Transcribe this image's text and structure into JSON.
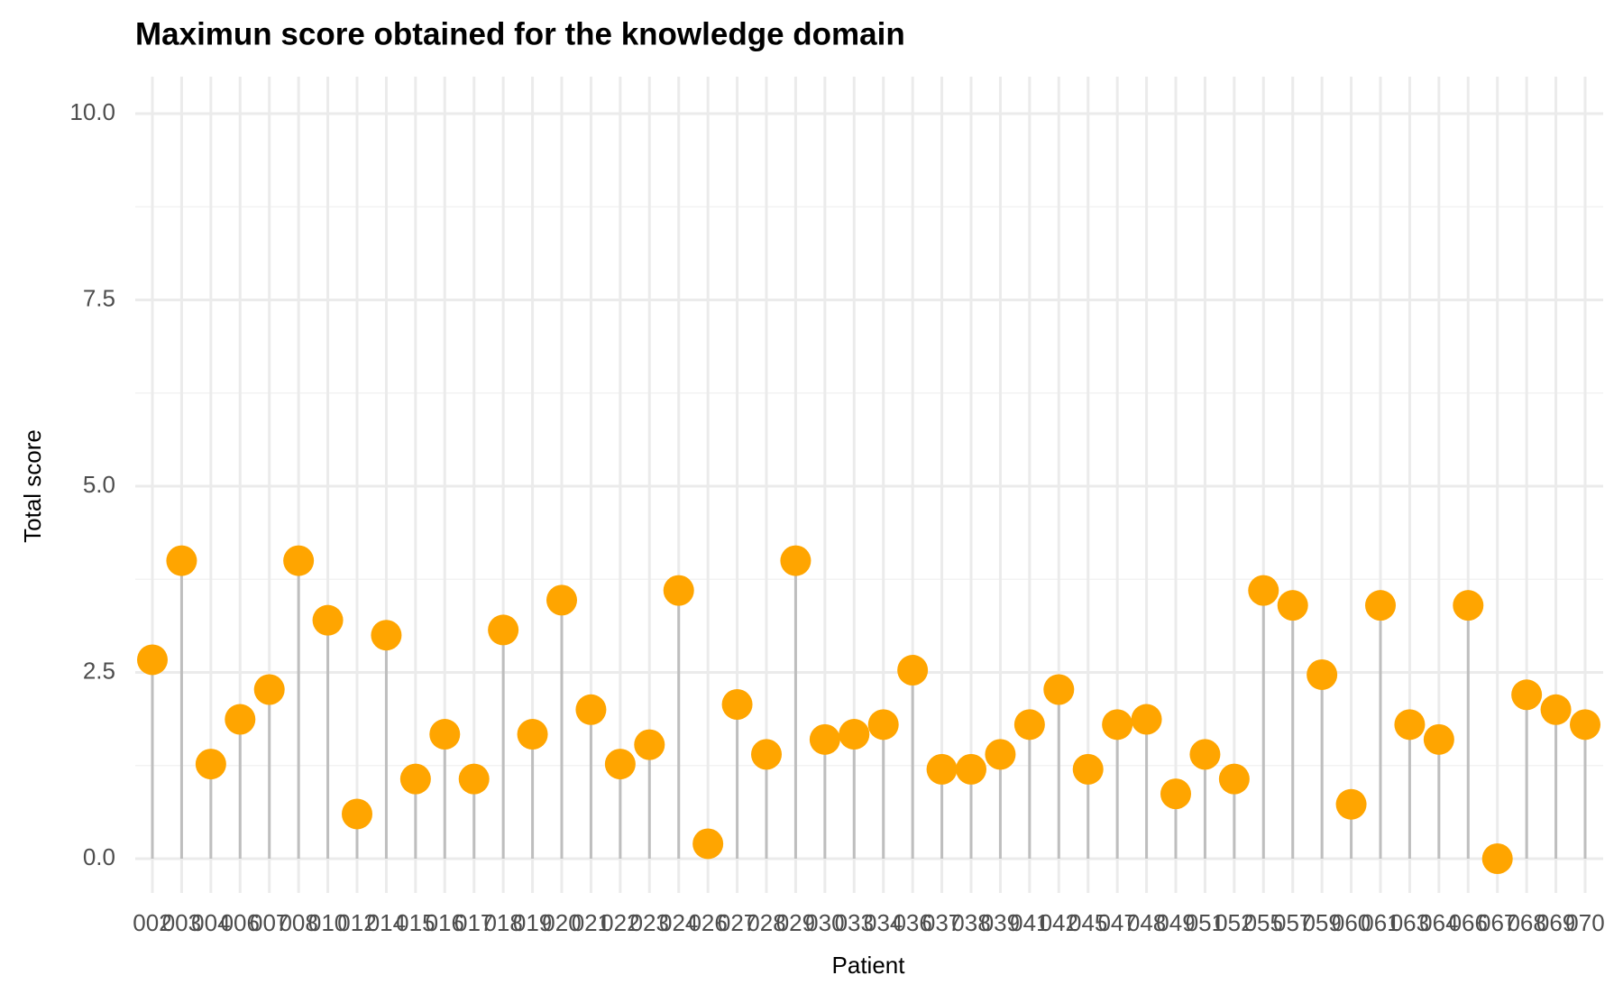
{
  "chart_data": {
    "type": "lollipop",
    "title": "Maximun score obtained for the knowledge domain",
    "x_label": "Patient",
    "y_label": "Total score",
    "categories": [
      "002",
      "003",
      "004",
      "006",
      "007",
      "008",
      "010",
      "012",
      "014",
      "015",
      "016",
      "017",
      "018",
      "019",
      "020",
      "021",
      "022",
      "023",
      "024",
      "026",
      "027",
      "028",
      "029",
      "030",
      "033",
      "034",
      "036",
      "037",
      "038",
      "039",
      "041",
      "042",
      "045",
      "047",
      "048",
      "049",
      "051",
      "052",
      "055",
      "057",
      "059",
      "060",
      "061",
      "063",
      "064",
      "066",
      "067",
      "068",
      "069",
      "070"
    ],
    "values": [
      2.67,
      4.0,
      1.27,
      1.87,
      2.27,
      4.0,
      3.2,
      0.6,
      3.0,
      1.07,
      1.67,
      1.07,
      3.07,
      1.67,
      3.47,
      2.0,
      1.27,
      1.53,
      3.6,
      0.2,
      2.07,
      1.4,
      4.0,
      1.6,
      1.67,
      1.8,
      2.53,
      1.2,
      1.2,
      1.4,
      1.8,
      2.27,
      1.2,
      1.8,
      1.87,
      0.87,
      1.4,
      1.07,
      3.6,
      3.4,
      2.47,
      0.73,
      3.4,
      1.8,
      1.6,
      3.4,
      0,
      2.2,
      2.0,
      1.8
    ],
    "color": "#FFA500",
    "stem_color": "#BEBEBE",
    "ylim": [
      0,
      10
    ],
    "yticks": [
      {
        "value": 0,
        "label": "0.0"
      },
      2.5,
      {
        "value": 5,
        "label": "5.0"
      },
      7.5,
      {
        "value": 10,
        "label": "10.0"
      }
    ],
    "grid": true
  }
}
